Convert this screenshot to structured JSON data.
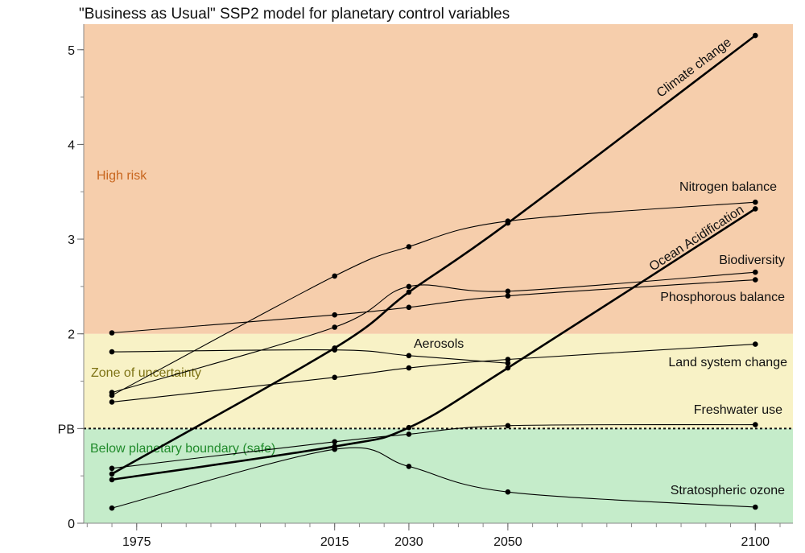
{
  "chart_data": {
    "type": "line",
    "title": "\"Business as Usual\" SSP2 model for planetary control variables",
    "xlabel": "",
    "ylabel": "",
    "x_ticks": [
      1975,
      2015,
      2030,
      2050,
      2100
    ],
    "x_minor_step": 5,
    "xlim": [
      1964.3,
      2107.6
    ],
    "ylim": [
      0,
      5.27
    ],
    "y_ticks": [
      {
        "value": 0,
        "label": "0"
      },
      {
        "value": 1,
        "label": "PB"
      },
      {
        "value": 2,
        "label": "2"
      },
      {
        "value": 3,
        "label": "3"
      },
      {
        "value": 4,
        "label": "4"
      },
      {
        "value": 5,
        "label": "5"
      }
    ],
    "y_minor_step": 0.5,
    "grid": false,
    "zones": [
      {
        "label": "Below planetary boundary (safe)",
        "from": 0,
        "to": 1,
        "color": "#c5ecca",
        "text_color": "#1f8a2a"
      },
      {
        "label": "Zone of uncertainty",
        "from": 1,
        "to": 2,
        "color": "#f8f2c6",
        "text_color": "#7d7214"
      },
      {
        "label": "High risk",
        "from": 2,
        "to": 5.27,
        "color": "#f6ceac",
        "text_color": "#c8661e"
      }
    ],
    "boundary_line": {
      "value": 1,
      "style": "dotted"
    },
    "series": [
      {
        "name": "Climate change",
        "thick": true,
        "x": [
          1970,
          2015,
          2030,
          2050,
          2100
        ],
        "y": [
          0.52,
          1.85,
          2.44,
          3.17,
          5.15
        ]
      },
      {
        "name": "Nitrogen balance",
        "thick": false,
        "x": [
          1970,
          2015,
          2030,
          2050,
          2100
        ],
        "y": [
          1.35,
          2.61,
          2.92,
          3.19,
          3.39
        ]
      },
      {
        "name": "Ocean Acidification",
        "thick": true,
        "x": [
          1970,
          2015,
          2030,
          2050,
          2100
        ],
        "y": [
          0.46,
          0.81,
          1.01,
          1.64,
          3.32
        ]
      },
      {
        "name": "Biodiversity",
        "thick": false,
        "x": [
          1970,
          2015,
          2030,
          2050,
          2100
        ],
        "y": [
          1.38,
          2.07,
          2.5,
          2.45,
          2.65
        ]
      },
      {
        "name": "Phosphorous balance",
        "thick": false,
        "x": [
          1970,
          2015,
          2030,
          2050,
          2100
        ],
        "y": [
          2.01,
          2.2,
          2.28,
          2.4,
          2.57
        ]
      },
      {
        "name": "Aerosols",
        "thick": false,
        "x": [
          1970,
          2015,
          2030,
          2050
        ],
        "y": [
          1.81,
          1.83,
          1.77,
          1.69
        ]
      },
      {
        "name": "Land system change",
        "thick": false,
        "x": [
          1970,
          2015,
          2030,
          2050,
          2100
        ],
        "y": [
          1.28,
          1.54,
          1.64,
          1.73,
          1.89
        ]
      },
      {
        "name": "Freshwater use",
        "thick": false,
        "x": [
          1970,
          2015,
          2030,
          2050,
          2100
        ],
        "y": [
          0.58,
          0.86,
          0.94,
          1.03,
          1.04
        ]
      },
      {
        "name": "Stratospheric ozone",
        "thick": false,
        "x": [
          1970,
          2015,
          2030,
          2050,
          2100
        ],
        "y": [
          0.16,
          0.78,
          0.6,
          0.33,
          0.17
        ]
      }
    ]
  }
}
